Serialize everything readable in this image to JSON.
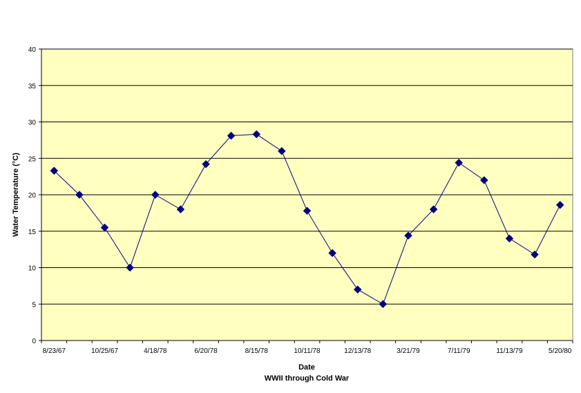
{
  "chart_data": {
    "type": "line",
    "title": "",
    "xlabel": "Date",
    "xlabel_sub": "WWII through Cold War",
    "ylabel": "Water Temperature (°C)",
    "ylim": [
      0,
      40
    ],
    "yticks": [
      0,
      5,
      10,
      15,
      20,
      25,
      30,
      35,
      40
    ],
    "grid": true,
    "legend": "none",
    "plot_background": "#FFFFC0",
    "line_color": "#000080",
    "marker": "diamond",
    "x_tick_labels": [
      "8/23/67",
      "10/25/67",
      "4/18/78",
      "6/20/78",
      "8/15/78",
      "10/11/78",
      "12/13/78",
      "3/21/79",
      "7/11/79",
      "11/13/79",
      "5/20/80"
    ],
    "series": [
      {
        "values": [
          23.3,
          20.0,
          15.5,
          10.0,
          20.0,
          18.0,
          24.2,
          28.1,
          28.3,
          26.0,
          17.8,
          12.0,
          7.0,
          5.0,
          14.4,
          18.0,
          24.4,
          22.0,
          14.0,
          11.8,
          18.6
        ]
      }
    ]
  }
}
